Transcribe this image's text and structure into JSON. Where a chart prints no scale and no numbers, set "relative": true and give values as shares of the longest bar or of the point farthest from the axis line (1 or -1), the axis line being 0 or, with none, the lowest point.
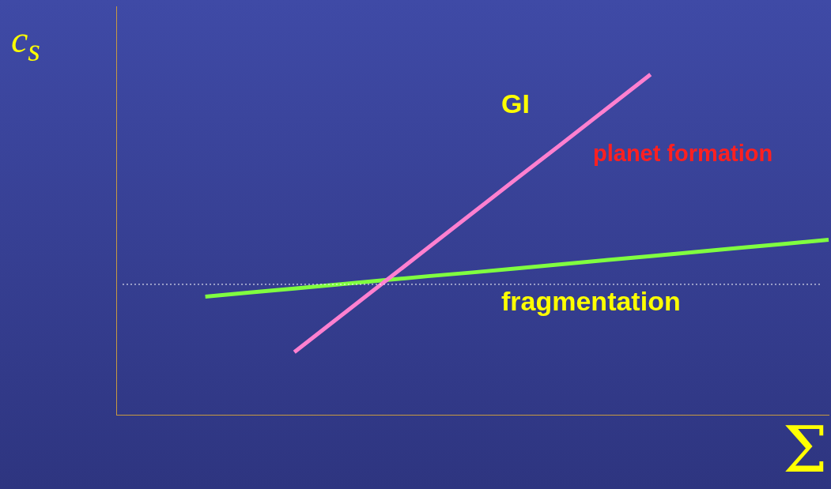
{
  "chart_data": {
    "type": "line",
    "relative": true,
    "xlabel": "Σ",
    "ylabel": "c$_{s}$",
    "categories": [
      null,
      null,
      null,
      null,
      null,
      null,
      null,
      null,
      null,
      null,
      null,
      null,
      null,
      null,
      null,
      null,
      null
    ],
    "series": [
      {
        "color": "#ff80d0",
        "values": [
          null,
          null,
          null,
          null,
          0.185,
          0.287,
          0.389,
          0.491,
          0.593,
          0.695,
          0.796,
          0.898,
          1,
          null,
          null,
          null,
          null
        ]
      },
      {
        "color": "#80ff40",
        "values": [
          null,
          null,
          0.348,
          0.36,
          0.372,
          0.384,
          0.396,
          0.408,
          0.419,
          0.431,
          0.443,
          0.455,
          0.467,
          0.479,
          0.491,
          0.503,
          0.515
        ]
      }
    ],
    "ref_lines": [
      {
        "axis": "y",
        "value": 0.384,
        "color": "#ffffff",
        "line_style": "dotted"
      }
    ],
    "annotations": [
      "GI",
      "planet formation",
      "fragmentation"
    ],
    "grid": false,
    "legend": false,
    "marker": "none",
    "line_style": "solid"
  }
}
